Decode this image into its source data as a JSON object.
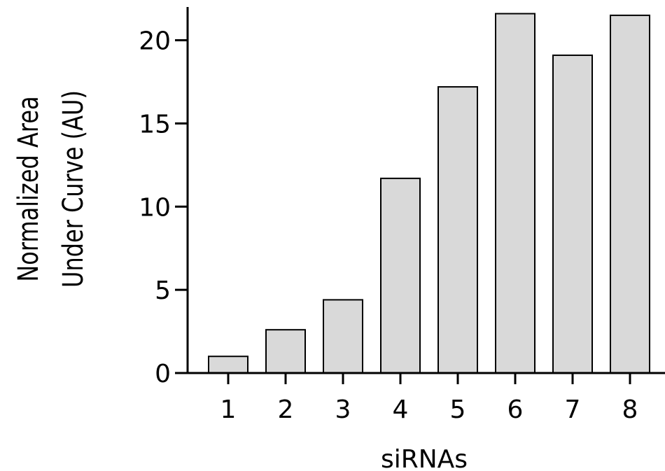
{
  "chart_data": {
    "type": "bar",
    "title": "",
    "categories": [
      "1",
      "2",
      "3",
      "4",
      "5",
      "6",
      "7",
      "8"
    ],
    "values": [
      1.0,
      2.6,
      4.4,
      11.7,
      17.2,
      21.6,
      19.1,
      21.5
    ],
    "xlabel": "siRNAs",
    "ylabel": "Normalized Area Under Curve (AU)",
    "ylabel_lines": [
      "Normalized Area",
      "Under Curve (AU)"
    ],
    "ylim": [
      0,
      22
    ],
    "yticks": [
      0,
      5,
      10,
      15,
      20
    ],
    "ytick_labels": [
      "0",
      "5",
      "10",
      "15",
      "20"
    ],
    "grid": false,
    "legend": "none",
    "colors": {
      "bar_fill": "#d9d9d9",
      "bar_stroke": "#000000",
      "axis": "#000000"
    }
  }
}
